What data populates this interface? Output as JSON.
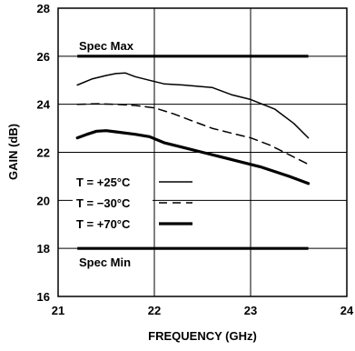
{
  "chart_data": {
    "type": "line",
    "title": "",
    "xlabel": "FREQUENCY (GHz)",
    "ylabel": "GAIN (dB)",
    "xlim": [
      21,
      24
    ],
    "ylim": [
      16,
      28
    ],
    "x_ticks": [
      21,
      22,
      23,
      24
    ],
    "x_tick_labels": [
      "21",
      "22",
      "23",
      "24"
    ],
    "y_ticks": [
      16,
      18,
      20,
      22,
      24,
      26,
      28
    ],
    "y_tick_labels": [
      "16",
      "18",
      "20",
      "22",
      "24",
      "26",
      "28"
    ],
    "grid": true,
    "legend_position": "left",
    "series": [
      {
        "name": "T = +25°C",
        "style": "thin-solid",
        "x": [
          21.2,
          21.35,
          21.5,
          21.6,
          21.7,
          21.8,
          21.95,
          22.1,
          22.3,
          22.6,
          22.8,
          23.0,
          23.25,
          23.45,
          23.6
        ],
        "y": [
          24.8,
          25.05,
          25.2,
          25.28,
          25.3,
          25.15,
          25.0,
          24.85,
          24.8,
          24.7,
          24.4,
          24.2,
          23.8,
          23.2,
          22.6
        ]
      },
      {
        "name": "T = −30°C",
        "style": "dashed",
        "x": [
          21.2,
          21.4,
          21.6,
          21.8,
          22.0,
          22.2,
          22.4,
          22.6,
          22.8,
          23.0,
          23.2,
          23.4,
          23.6
        ],
        "y": [
          24.0,
          24.02,
          24.0,
          23.95,
          23.85,
          23.6,
          23.3,
          23.0,
          22.8,
          22.6,
          22.3,
          21.9,
          21.5
        ]
      },
      {
        "name": "T = +70°C",
        "style": "thick-solid",
        "x": [
          21.2,
          21.3,
          21.4,
          21.5,
          21.6,
          21.8,
          21.95,
          22.1,
          22.3,
          22.5,
          22.8,
          23.1,
          23.4,
          23.6
        ],
        "y": [
          22.6,
          22.75,
          22.88,
          22.9,
          22.85,
          22.75,
          22.65,
          22.4,
          22.2,
          22.0,
          21.7,
          21.4,
          21.0,
          20.7
        ]
      }
    ],
    "reference_lines": [
      {
        "label": "Spec Max",
        "y": 26,
        "x_range": [
          21.2,
          23.6
        ]
      },
      {
        "label": "Spec Min",
        "y": 18,
        "x_range": [
          21.2,
          23.6
        ]
      }
    ]
  }
}
